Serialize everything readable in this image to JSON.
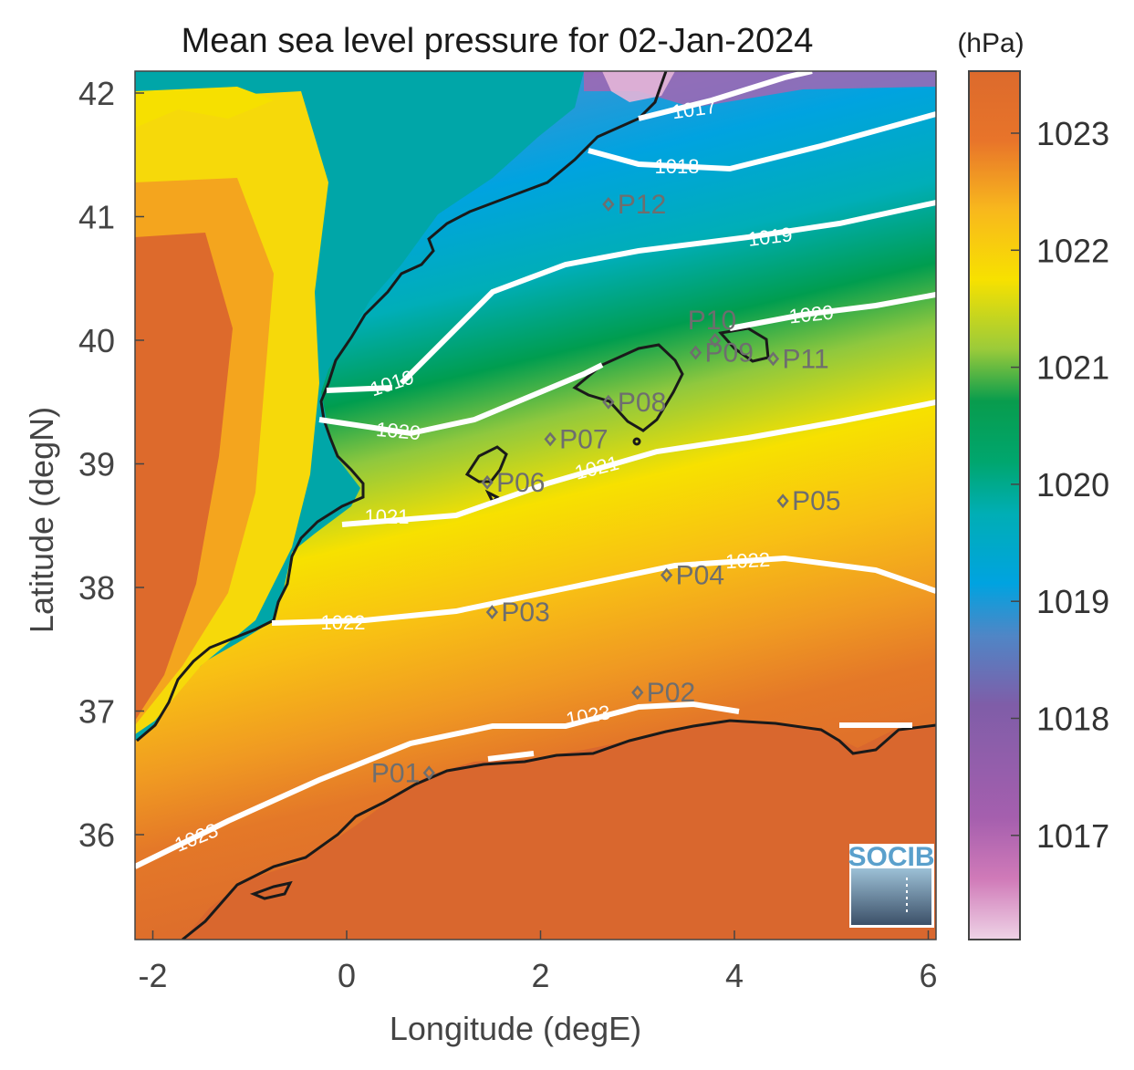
{
  "title": "Mean sea level pressure for 02-Jan-2024",
  "x_axis": {
    "label": "Longitude (degE)",
    "ticks": [
      "-2",
      "0",
      "2",
      "4",
      "6"
    ]
  },
  "y_axis": {
    "label": "Latitude (degN)",
    "ticks": [
      "42",
      "41",
      "40",
      "39",
      "38",
      "37",
      "36"
    ]
  },
  "colorbar": {
    "unit": "(hPa)",
    "ticks": [
      "1023",
      "1022",
      "1021",
      "1020",
      "1019",
      "1018",
      "1017"
    ]
  },
  "contour_labels": [
    "1017",
    "1018",
    "1019",
    "1019",
    "1020",
    "1020",
    "1021",
    "1021",
    "1022",
    "1022",
    "1023",
    "1023"
  ],
  "points": [
    {
      "id": "P01",
      "lon": 0.85,
      "lat": 36.5
    },
    {
      "id": "P02",
      "lon": 3.0,
      "lat": 37.15
    },
    {
      "id": "P03",
      "lon": 1.5,
      "lat": 37.8
    },
    {
      "id": "P04",
      "lon": 3.3,
      "lat": 38.1
    },
    {
      "id": "P05",
      "lon": 4.5,
      "lat": 38.7
    },
    {
      "id": "P06",
      "lon": 1.45,
      "lat": 38.85
    },
    {
      "id": "P07",
      "lon": 2.1,
      "lat": 39.2
    },
    {
      "id": "P08",
      "lon": 2.7,
      "lat": 39.5
    },
    {
      "id": "P09",
      "lon": 3.6,
      "lat": 39.9
    },
    {
      "id": "P10",
      "lon": 3.8,
      "lat": 40.0
    },
    {
      "id": "P11",
      "lon": 4.4,
      "lat": 39.85
    },
    {
      "id": "P12",
      "lon": 2.7,
      "lat": 41.1
    }
  ],
  "logo_text": "SOCIB",
  "colors": {
    "c1017": "#e4bfdb",
    "c1017b": "#c658a9",
    "c1018": "#8459a6",
    "c1018b": "#4f86c6",
    "c1019": "#00a0de",
    "c1019b": "#00ada6",
    "c1020": "#009d4f",
    "c1021": "#9bcb3a",
    "c1022": "#f7e100",
    "c1022b": "#f8b81d",
    "c1023": "#e57126",
    "c1023b": "#d9682e",
    "coast": "#1a1a1a",
    "contour": "#ffffff",
    "point": "#6e6e6e"
  }
}
